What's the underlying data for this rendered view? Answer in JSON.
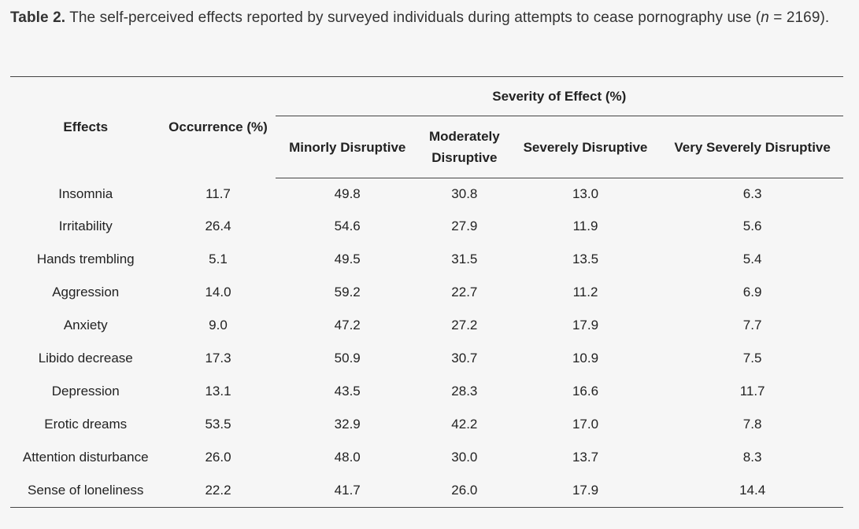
{
  "caption": {
    "label": "Table 2.",
    "text": "The self-perceived effects reported by surveyed individuals during attempts to cease pornography use (",
    "italic": "n",
    "tail": " = 2169)."
  },
  "table": {
    "header": {
      "effects": "Effects",
      "occurrence": "Occurrence (%)",
      "severity_group": "Severity of Effect (%)",
      "minorly": "Minorly Disruptive",
      "moderately": "Moderately Disruptive",
      "severely": "Severely Disruptive",
      "very_severely": "Very Severely Disruptive"
    },
    "rows": [
      {
        "effect": "Insomnia",
        "occurrence": "11.7",
        "minor": "49.8",
        "moderate": "30.8",
        "severe": "13.0",
        "very_severe": "6.3"
      },
      {
        "effect": "Irritability",
        "occurrence": "26.4",
        "minor": "54.6",
        "moderate": "27.9",
        "severe": "11.9",
        "very_severe": "5.6"
      },
      {
        "effect": "Hands trembling",
        "occurrence": "5.1",
        "minor": "49.5",
        "moderate": "31.5",
        "severe": "13.5",
        "very_severe": "5.4"
      },
      {
        "effect": "Aggression",
        "occurrence": "14.0",
        "minor": "59.2",
        "moderate": "22.7",
        "severe": "11.2",
        "very_severe": "6.9"
      },
      {
        "effect": "Anxiety",
        "occurrence": "9.0",
        "minor": "47.2",
        "moderate": "27.2",
        "severe": "17.9",
        "very_severe": "7.7"
      },
      {
        "effect": "Libido decrease",
        "occurrence": "17.3",
        "minor": "50.9",
        "moderate": "30.7",
        "severe": "10.9",
        "very_severe": "7.5"
      },
      {
        "effect": "Depression",
        "occurrence": "13.1",
        "minor": "43.5",
        "moderate": "28.3",
        "severe": "16.6",
        "very_severe": "11.7"
      },
      {
        "effect": "Erotic dreams",
        "occurrence": "53.5",
        "minor": "32.9",
        "moderate": "42.2",
        "severe": "17.0",
        "very_severe": "7.8"
      },
      {
        "effect": "Attention disturbance",
        "occurrence": "26.0",
        "minor": "48.0",
        "moderate": "30.0",
        "severe": "13.7",
        "very_severe": "8.3"
      },
      {
        "effect": "Sense of loneliness",
        "occurrence": "22.2",
        "minor": "41.7",
        "moderate": "26.0",
        "severe": "17.9",
        "very_severe": "14.4"
      }
    ]
  }
}
